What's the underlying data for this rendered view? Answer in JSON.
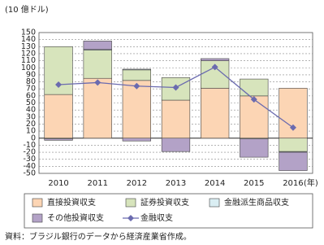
{
  "chart_data": {
    "type": "bar",
    "unit_label": "(10 億ドル)",
    "x_unit": "(年)",
    "categories": [
      "2010",
      "2011",
      "2012",
      "2013",
      "2014",
      "2015",
      "2016"
    ],
    "series": [
      {
        "name": "直接投資収支",
        "type": "bar",
        "color": "#fcd5b4",
        "values": [
          62,
          85,
          82,
          54,
          71,
          60,
          71
        ]
      },
      {
        "name": "証券投資収支",
        "type": "bar",
        "color": "#d7e4bc",
        "values": [
          68,
          40,
          15,
          32,
          39,
          24,
          -19
        ]
      },
      {
        "name": "金融派生商品収支",
        "type": "bar",
        "color": "#daeef3",
        "values": [
          -1,
          1,
          1,
          0,
          0,
          -1,
          -1
        ]
      },
      {
        "name": "その他投資収支",
        "type": "bar",
        "color": "#b3a2c7",
        "values": [
          -2,
          12,
          -4,
          -19,
          3,
          -26,
          -26
        ]
      },
      {
        "name": "金融収支",
        "type": "line",
        "color": "#6b6baf",
        "values": [
          76,
          79,
          74,
          72,
          101,
          55,
          15
        ]
      }
    ],
    "ylim": [
      -50,
      150
    ],
    "yticks": [
      -50,
      -40,
      -30,
      -20,
      -10,
      0,
      10,
      20,
      30,
      40,
      50,
      60,
      70,
      80,
      90,
      100,
      110,
      120,
      130,
      140,
      150
    ],
    "grid": true,
    "source": "資料：ブラジル銀行のデータから経済産業省作成。"
  }
}
